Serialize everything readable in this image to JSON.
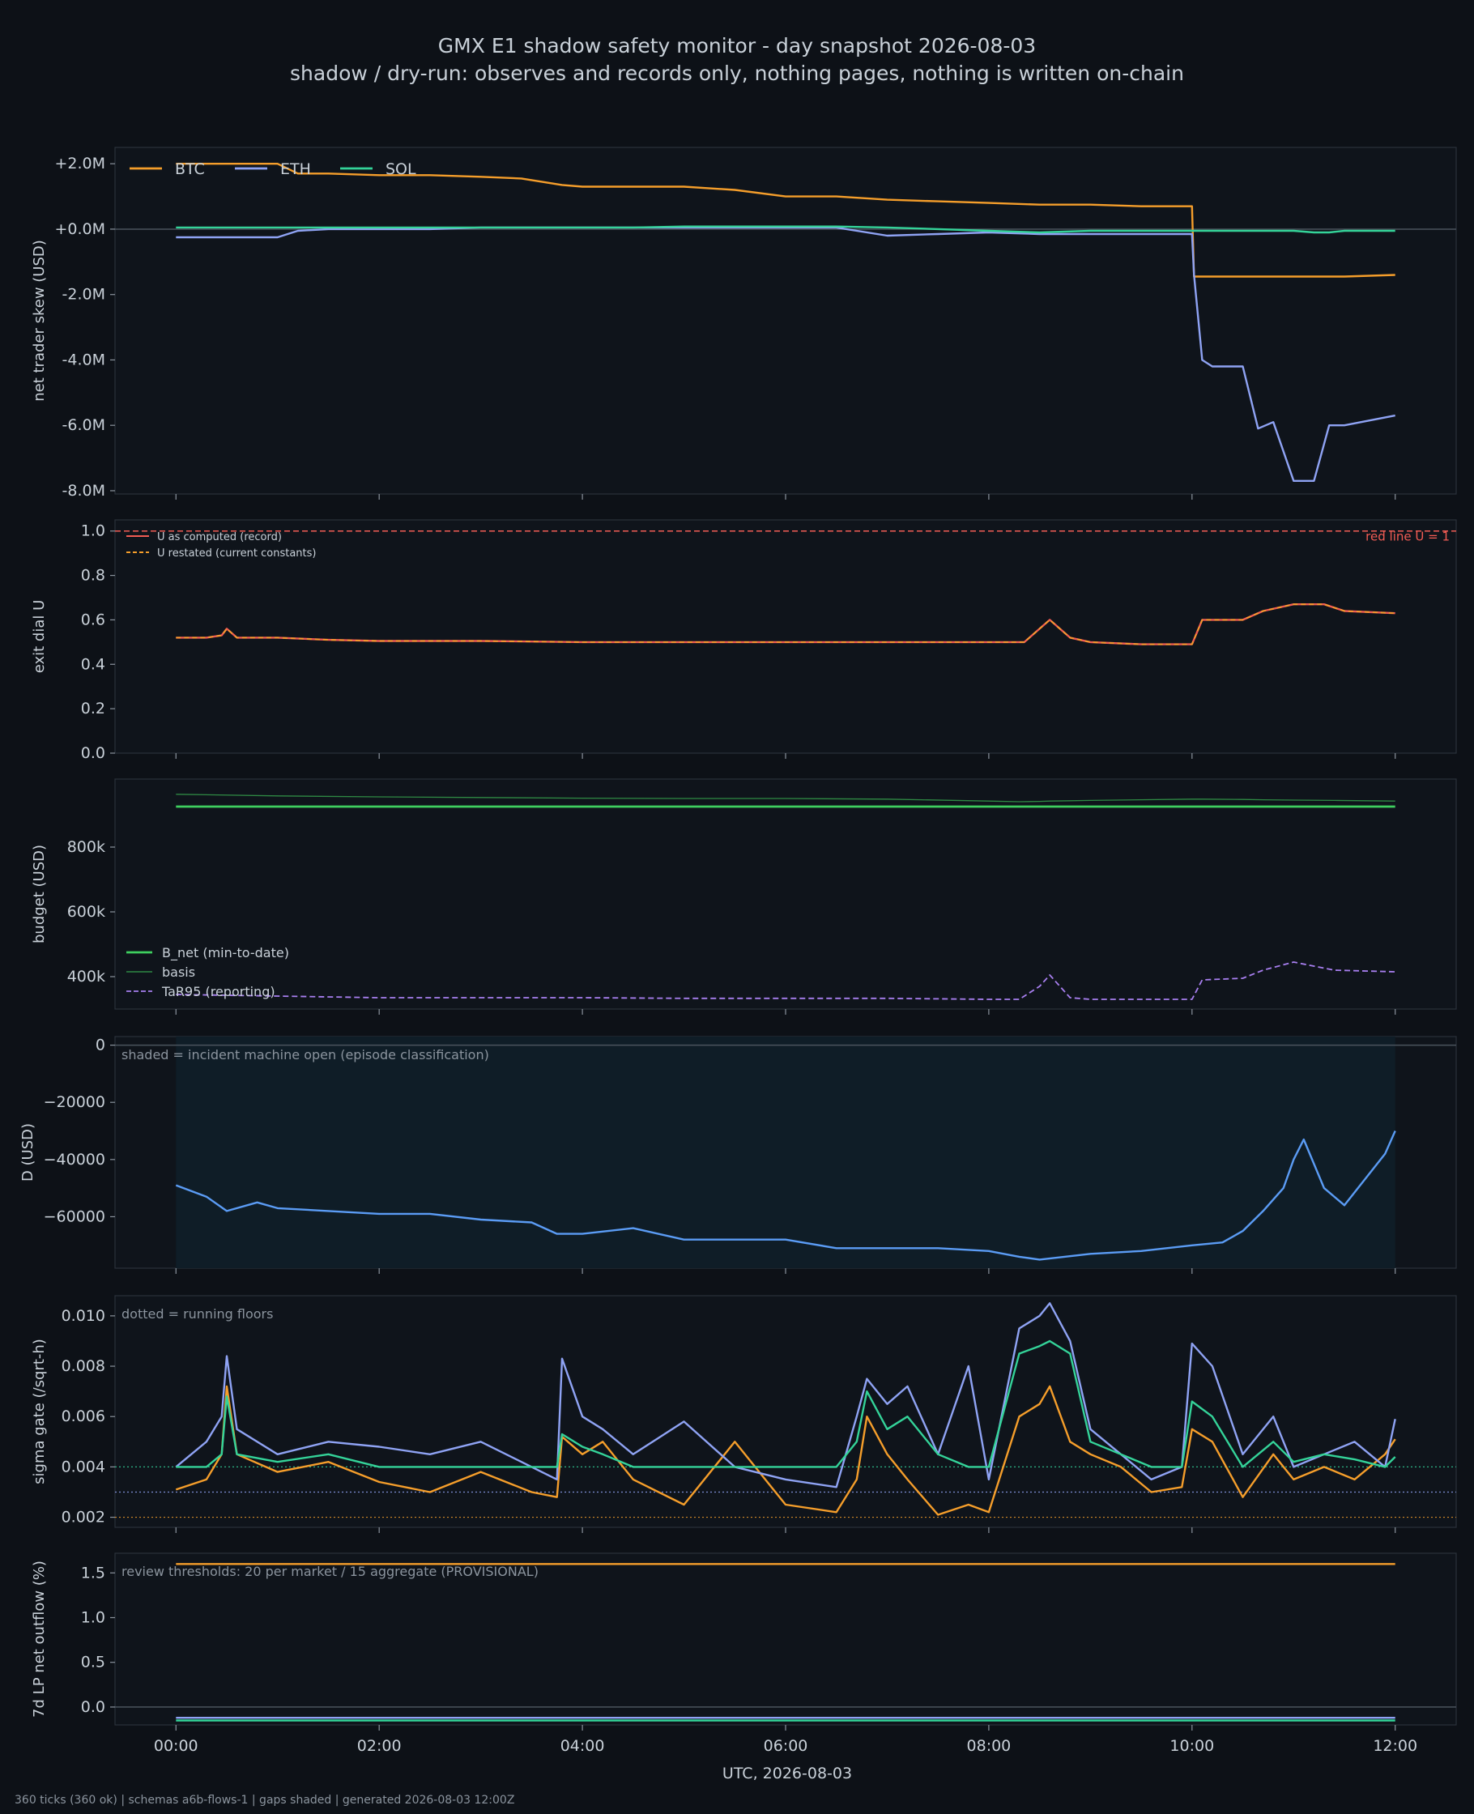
{
  "title": "GMX E1 shadow safety monitor - day snapshot 2026-08-03",
  "subtitle": "shadow / dry-run: observes and records only, nothing pages, nothing is written on-chain",
  "footer": "360 ticks (360 ok) | schemas a6b-flows-1 | gaps shaded | generated 2026-08-03 12:00Z",
  "colors": {
    "background": "#0d1117",
    "panel": "#0f141b",
    "btc": "#f59e2b",
    "eth": "#8fa3f4",
    "sol": "#34d399",
    "red_line": "#f25c54",
    "b_net": "#3fcf5f",
    "d_line": "#5b9cf5",
    "tar95": "#a87ff0"
  },
  "chart_data": [
    {
      "type": "line",
      "ylabel": "net trader skew (USD)",
      "ylim": [
        -8.1,
        2.5
      ],
      "yticks": [
        2,
        0,
        -2,
        -4,
        -6,
        -8
      ],
      "ytick_labels": [
        "+2.0M",
        "+0.0M",
        "-2.0M",
        "-4.0M",
        "-6.0M",
        "-8.0M"
      ],
      "zero_line": true,
      "legend": "top-left, horizontal",
      "x_hours": [
        0,
        0.5,
        1.0,
        1.2,
        1.5,
        2.0,
        2.5,
        3.0,
        3.4,
        3.6,
        3.8,
        4.0,
        4.5,
        5.0,
        5.5,
        6.0,
        6.5,
        7.0,
        7.5,
        8.0,
        8.5,
        9.0,
        9.5,
        10.0,
        10.02,
        10.1,
        10.2,
        10.5,
        10.65,
        10.8,
        11.0,
        11.2,
        11.35,
        11.5,
        12.0
      ],
      "series": [
        {
          "name": "BTC",
          "values": [
            2.0,
            2.0,
            2.0,
            1.7,
            1.7,
            1.65,
            1.65,
            1.6,
            1.55,
            1.45,
            1.35,
            1.3,
            1.3,
            1.3,
            1.2,
            1.0,
            1.0,
            0.9,
            0.85,
            0.8,
            0.75,
            0.75,
            0.7,
            0.7,
            -1.45,
            -1.45,
            -1.45,
            -1.45,
            -1.45,
            -1.45,
            -1.45,
            -1.45,
            -1.45,
            -1.45,
            -1.4
          ]
        },
        {
          "name": "ETH",
          "values": [
            -0.25,
            -0.25,
            -0.25,
            -0.05,
            0.0,
            0.0,
            0.0,
            0.05,
            0.05,
            0.05,
            0.05,
            0.05,
            0.05,
            0.05,
            0.05,
            0.05,
            0.05,
            -0.2,
            -0.15,
            -0.1,
            -0.15,
            -0.15,
            -0.15,
            -0.15,
            -1.4,
            -4.0,
            -4.2,
            -4.2,
            -6.1,
            -5.9,
            -7.7,
            -7.7,
            -6.0,
            -6.0,
            -5.7
          ]
        },
        {
          "name": "SOL",
          "values": [
            0.05,
            0.05,
            0.05,
            0.05,
            0.05,
            0.05,
            0.05,
            0.05,
            0.05,
            0.05,
            0.05,
            0.05,
            0.05,
            0.08,
            0.08,
            0.08,
            0.08,
            0.05,
            0.0,
            -0.05,
            -0.1,
            -0.05,
            -0.05,
            -0.05,
            -0.05,
            -0.05,
            -0.05,
            -0.05,
            -0.05,
            -0.05,
            -0.05,
            -0.1,
            -0.1,
            -0.05,
            -0.05
          ]
        }
      ]
    },
    {
      "type": "line",
      "ylabel": "exit dial U",
      "ylim": [
        0,
        1.05
      ],
      "yticks": [
        0.0,
        0.2,
        0.4,
        0.6,
        0.8,
        1.0
      ],
      "ytick_labels": [
        "0.0",
        "0.2",
        "0.4",
        "0.6",
        "0.8",
        "1.0"
      ],
      "legend": "top-left",
      "reference_line": {
        "value": 1.0,
        "label": "red line U = 1",
        "style": "dashed"
      },
      "x_hours": [
        0,
        0.3,
        0.45,
        0.5,
        0.6,
        1.0,
        1.5,
        2.0,
        3.0,
        4.0,
        5.0,
        6.0,
        7.0,
        8.0,
        8.35,
        8.5,
        8.6,
        8.7,
        8.8,
        9.0,
        9.5,
        10.0,
        10.1,
        10.5,
        10.7,
        11.0,
        11.3,
        11.5,
        12.0
      ],
      "series": [
        {
          "name": "U as computed (record)",
          "values": [
            0.52,
            0.52,
            0.53,
            0.56,
            0.52,
            0.52,
            0.51,
            0.505,
            0.505,
            0.5,
            0.5,
            0.5,
            0.5,
            0.5,
            0.5,
            0.56,
            0.6,
            0.56,
            0.52,
            0.5,
            0.49,
            0.49,
            0.6,
            0.6,
            0.64,
            0.67,
            0.67,
            0.64,
            0.63
          ]
        },
        {
          "name": "U restated (current constants)",
          "values": [
            0.52,
            0.52,
            0.53,
            0.56,
            0.52,
            0.52,
            0.51,
            0.505,
            0.505,
            0.5,
            0.5,
            0.5,
            0.5,
            0.5,
            0.5,
            0.56,
            0.6,
            0.56,
            0.52,
            0.5,
            0.49,
            0.49,
            0.6,
            0.6,
            0.64,
            0.67,
            0.67,
            0.64,
            0.63
          ]
        }
      ]
    },
    {
      "type": "line",
      "ylabel": "budget (USD)",
      "ylim": [
        300,
        1010
      ],
      "ytick_values": [
        400,
        600,
        800
      ],
      "ytick_labels": [
        "400k",
        "600k",
        "800k"
      ],
      "legend": "bottom-left",
      "x_hours": [
        0,
        1,
        2,
        3,
        4,
        5,
        6,
        7,
        8,
        8.3,
        8.5,
        8.6,
        8.8,
        9.0,
        10.0,
        10.1,
        10.5,
        10.7,
        11.0,
        11.4,
        12.0
      ],
      "series": [
        {
          "name": "B_net (min-to-date)",
          "values": [
            925,
            925,
            925,
            925,
            925,
            925,
            925,
            925,
            925,
            925,
            925,
            925,
            925,
            925,
            925,
            925,
            925,
            925,
            925,
            925,
            925
          ]
        },
        {
          "name": "basis",
          "values": [
            963,
            958,
            955,
            953,
            951,
            950,
            950,
            948,
            942,
            940,
            941,
            942,
            943,
            944,
            948,
            948,
            947,
            946,
            945,
            944,
            942
          ]
        },
        {
          "name": "TaR95 (reporting)",
          "values": [
            345,
            340,
            335,
            335,
            335,
            333,
            333,
            333,
            330,
            330,
            370,
            405,
            335,
            330,
            330,
            390,
            395,
            420,
            445,
            420,
            415
          ]
        }
      ]
    },
    {
      "type": "line",
      "ylabel": "D (USD)",
      "ylim": [
        -78000,
        3000
      ],
      "yticks": [
        0,
        -20000,
        -40000,
        -60000
      ],
      "ytick_labels": [
        "0",
        "−20000",
        "−40000",
        "−60000"
      ],
      "annotation": "shaded = incident machine open (episode classification)",
      "shaded_span_hours": [
        0,
        12
      ],
      "zero_line": true,
      "x_hours": [
        0,
        0.3,
        0.5,
        0.8,
        1.0,
        1.5,
        2.0,
        2.5,
        3.0,
        3.5,
        3.75,
        4.0,
        4.5,
        5.0,
        6.0,
        6.5,
        7.0,
        7.5,
        8.0,
        8.3,
        8.5,
        9.0,
        9.5,
        10.0,
        10.3,
        10.5,
        10.7,
        10.9,
        11.0,
        11.1,
        11.3,
        11.5,
        11.7,
        11.9,
        12.0
      ],
      "series": [
        {
          "name": "D",
          "values": [
            -49000,
            -53000,
            -58000,
            -55000,
            -57000,
            -58000,
            -59000,
            -59000,
            -61000,
            -62000,
            -66000,
            -66000,
            -64000,
            -68000,
            -68000,
            -71000,
            -71000,
            -71000,
            -72000,
            -74000,
            -75000,
            -73000,
            -72000,
            -70000,
            -69000,
            -65000,
            -58000,
            -50000,
            -40000,
            -33000,
            -50000,
            -56000,
            -47000,
            -38000,
            -30000
          ]
        }
      ]
    },
    {
      "type": "line",
      "ylabel": "sigma gate (/sqrt-h)",
      "ylim": [
        0.0016,
        0.0108
      ],
      "yticks": [
        0.002,
        0.004,
        0.006,
        0.008,
        0.01
      ],
      "ytick_labels": [
        "0.002",
        "0.004",
        "0.006",
        "0.008",
        "0.010"
      ],
      "annotation": "dotted = running floors",
      "floors": [
        {
          "series": "SOL",
          "value": 0.004
        },
        {
          "series": "ETH",
          "value": 0.003
        },
        {
          "series": "BTC",
          "value": 0.002
        }
      ],
      "x_hours": [
        0,
        0.3,
        0.45,
        0.5,
        0.6,
        1.0,
        1.5,
        2.0,
        2.5,
        3.0,
        3.5,
        3.75,
        3.8,
        4.0,
        4.2,
        4.5,
        5.0,
        5.5,
        6.0,
        6.5,
        6.7,
        6.8,
        7.0,
        7.2,
        7.5,
        7.8,
        8.0,
        8.3,
        8.5,
        8.6,
        8.8,
        9.0,
        9.3,
        9.6,
        9.9,
        10.0,
        10.2,
        10.5,
        10.8,
        11.0,
        11.3,
        11.6,
        11.9,
        12.0
      ],
      "series": [
        {
          "name": "BTC",
          "values": [
            0.0031,
            0.0035,
            0.0045,
            0.0072,
            0.0045,
            0.0038,
            0.0042,
            0.0034,
            0.003,
            0.0038,
            0.003,
            0.0028,
            0.0052,
            0.0045,
            0.005,
            0.0035,
            0.0025,
            0.005,
            0.0025,
            0.0022,
            0.0035,
            0.006,
            0.0045,
            0.0035,
            0.0021,
            0.0025,
            0.0022,
            0.006,
            0.0065,
            0.0072,
            0.005,
            0.0045,
            0.004,
            0.003,
            0.0032,
            0.0055,
            0.005,
            0.0028,
            0.0045,
            0.0035,
            0.004,
            0.0035,
            0.0045,
            0.0051
          ]
        },
        {
          "name": "ETH",
          "values": [
            0.004,
            0.005,
            0.006,
            0.0084,
            0.0055,
            0.0045,
            0.005,
            0.0048,
            0.0045,
            0.005,
            0.004,
            0.0035,
            0.0083,
            0.006,
            0.0055,
            0.0045,
            0.0058,
            0.004,
            0.0035,
            0.0032,
            0.006,
            0.0075,
            0.0065,
            0.0072,
            0.0045,
            0.008,
            0.0035,
            0.0095,
            0.01,
            0.0105,
            0.009,
            0.0055,
            0.0045,
            0.0035,
            0.004,
            0.0089,
            0.008,
            0.0045,
            0.006,
            0.004,
            0.0045,
            0.005,
            0.004,
            0.0059
          ]
        },
        {
          "name": "SOL",
          "values": [
            0.004,
            0.004,
            0.0045,
            0.0068,
            0.0045,
            0.0042,
            0.0045,
            0.004,
            0.004,
            0.004,
            0.004,
            0.004,
            0.0053,
            0.0048,
            0.0045,
            0.004,
            0.004,
            0.004,
            0.004,
            0.004,
            0.005,
            0.007,
            0.0055,
            0.006,
            0.0045,
            0.004,
            0.004,
            0.0085,
            0.0088,
            0.009,
            0.0085,
            0.005,
            0.0045,
            0.004,
            0.004,
            0.0066,
            0.006,
            0.004,
            0.005,
            0.0042,
            0.0045,
            0.0043,
            0.004,
            0.0044
          ]
        }
      ]
    },
    {
      "type": "line",
      "ylabel": "7d LP net outflow (%)",
      "ylim": [
        -0.2,
        1.72
      ],
      "yticks": [
        0.0,
        0.5,
        1.0,
        1.5
      ],
      "ytick_labels": [
        "0.0",
        "0.5",
        "1.0",
        "1.5"
      ],
      "annotation": "review thresholds: 20 per market / 15 aggregate (PROVISIONAL)",
      "zero_line": true,
      "x_hours": [
        0,
        12
      ],
      "series": [
        {
          "name": "BTC",
          "values": [
            1.6,
            1.6
          ]
        },
        {
          "name": "ETH",
          "values": [
            -0.12,
            -0.12
          ]
        },
        {
          "name": "SOL",
          "values": [
            -0.15,
            -0.15
          ]
        }
      ]
    }
  ],
  "x_axis": {
    "label": "UTC, 2026-08-03",
    "tick_hours": [
      0,
      2,
      4,
      6,
      8,
      10,
      12
    ],
    "tick_labels": [
      "00:00",
      "02:00",
      "04:00",
      "06:00",
      "08:00",
      "10:00",
      "12:00"
    ],
    "range_hours": [
      -0.6,
      12.6
    ]
  }
}
